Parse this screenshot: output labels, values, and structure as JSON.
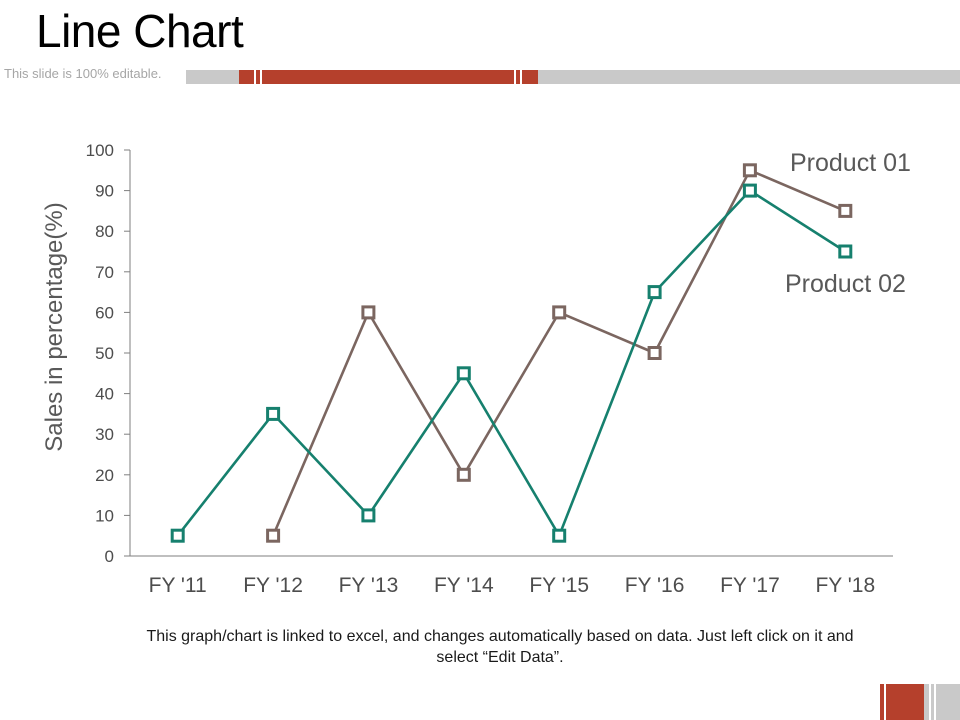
{
  "slide": {
    "title": "Line Chart",
    "subtitle": "This slide is 100% editable.",
    "footer_note": "This graph/chart is linked to excel, and changes automatically based on data. Just left click on it and select “Edit Data”."
  },
  "colors": {
    "accent": "#b5402c",
    "track": "#c9c9c9",
    "axis": "#7f7f7f",
    "product01": "#7b6660",
    "product02": "#16806e"
  },
  "chart_data": {
    "type": "line",
    "title": "",
    "xlabel": "",
    "ylabel": "Sales in percentage(%)",
    "ylim": [
      0,
      100
    ],
    "yticks": [
      0,
      10,
      20,
      30,
      40,
      50,
      60,
      70,
      80,
      90,
      100
    ],
    "grid": false,
    "legend": "inline labels at series ends",
    "categories": [
      "FY '11",
      "FY '12",
      "FY '13",
      "FY '14",
      "FY '15",
      "FY '16",
      "FY '17",
      "FY '18"
    ],
    "series": [
      {
        "name": "Product 01",
        "color": "#7b6660",
        "values": [
          null,
          5,
          60,
          20,
          60,
          50,
          95,
          85
        ]
      },
      {
        "name": "Product 02",
        "color": "#16806e",
        "values": [
          5,
          35,
          10,
          45,
          5,
          65,
          90,
          75
        ]
      }
    ]
  }
}
